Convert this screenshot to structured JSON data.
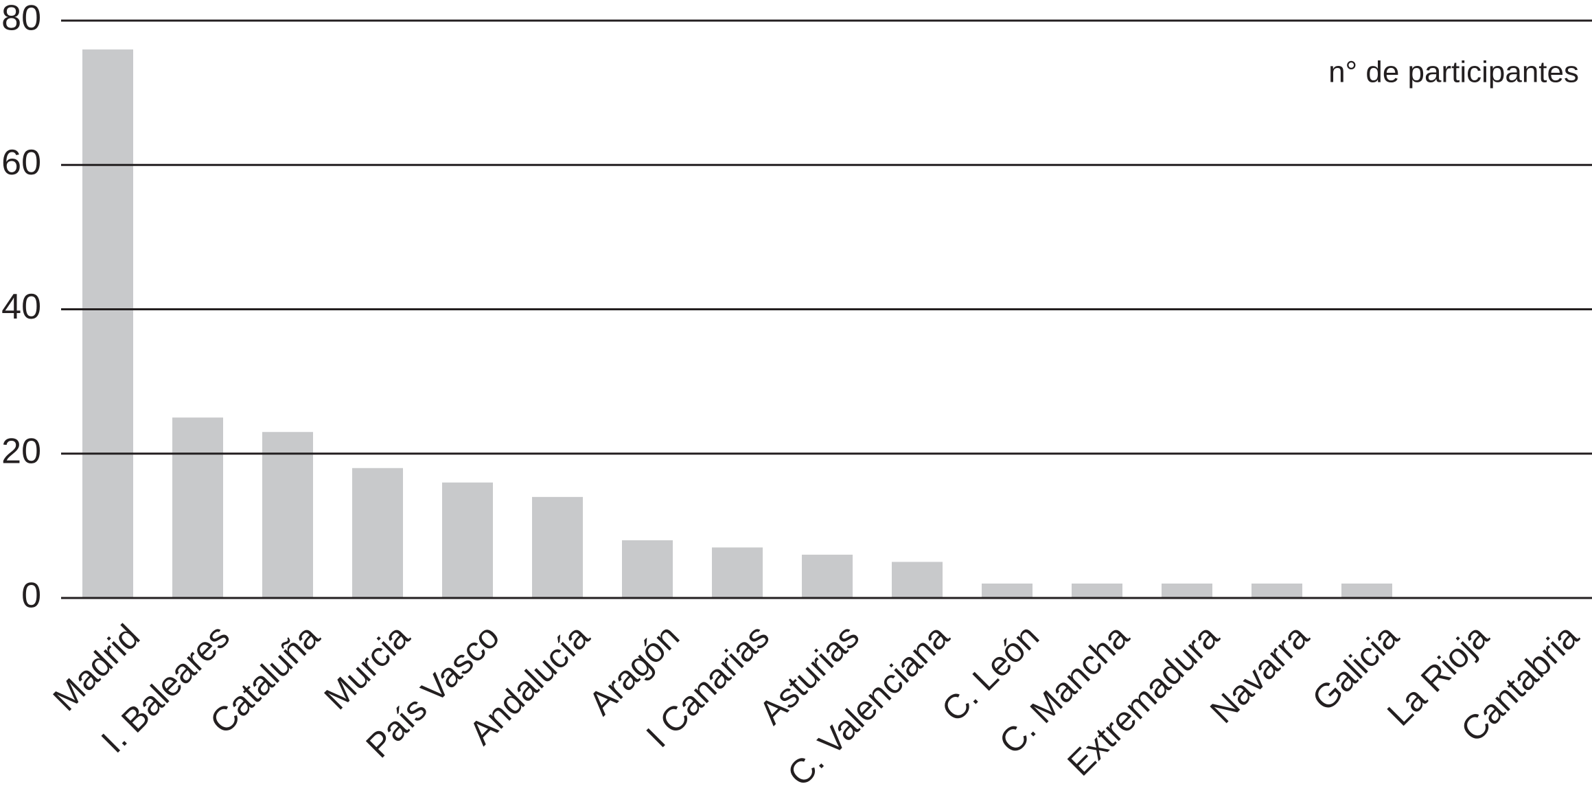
{
  "chart_data": {
    "type": "bar",
    "annotation": "n° de participantes",
    "categories": [
      "Madrid",
      "I. Baleares",
      "Cataluña",
      "Murcia",
      "País Vasco",
      "Andalucía",
      "Aragón",
      "I Canarias",
      "Asturias",
      "C. Valenciana",
      "C. León",
      "C. Mancha",
      "Extremadura",
      "Navarra",
      "Galicia",
      "La Rioja",
      "Cantabria"
    ],
    "values": [
      76,
      25,
      23,
      18,
      16,
      14,
      8,
      7,
      6,
      5,
      2,
      2,
      2,
      2,
      2,
      0,
      0
    ],
    "color": "#c8c9cb",
    "ylim": [
      0,
      80
    ],
    "yticks": [
      0,
      20,
      40,
      60,
      80
    ],
    "grid": true
  }
}
